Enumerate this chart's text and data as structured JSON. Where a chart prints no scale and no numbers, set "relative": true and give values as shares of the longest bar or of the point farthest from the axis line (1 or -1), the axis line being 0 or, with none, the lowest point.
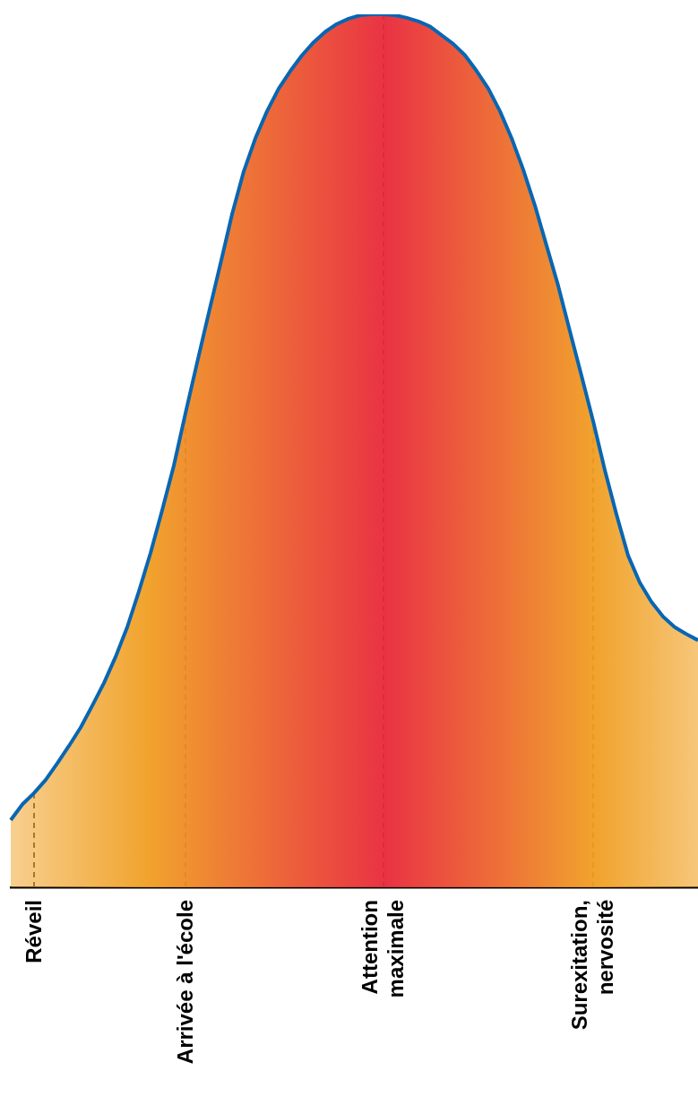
{
  "chart_data": {
    "type": "area",
    "relative": true,
    "categories": [
      null,
      null,
      "Réveil",
      null,
      null,
      null,
      null,
      null,
      null,
      null,
      null,
      null,
      null,
      null,
      null,
      "Arrivée à l'école",
      null,
      null,
      null,
      null,
      null,
      null,
      null,
      null,
      null,
      null,
      null,
      null,
      null,
      null,
      null,
      null,
      "Attention maximale",
      null,
      null,
      null,
      null,
      null,
      null,
      null,
      null,
      null,
      null,
      null,
      null,
      null,
      null,
      null,
      null,
      null,
      "Surexitation, nervosité",
      null,
      null,
      null,
      null,
      null,
      null,
      null,
      null,
      null
    ],
    "series": [
      {
        "color": "#0866b2",
        "values": [
          0.077,
          0.095,
          0.108,
          0.123,
          0.142,
          0.162,
          0.183,
          0.208,
          0.234,
          0.264,
          0.298,
          0.339,
          0.383,
          0.432,
          0.483,
          0.543,
          0.601,
          0.658,
          0.714,
          0.771,
          0.82,
          0.858,
          0.889,
          0.915,
          0.935,
          0.953,
          0.968,
          0.98,
          0.989,
          0.995,
          0.999,
          1,
          1,
          0.999,
          0.996,
          0.992,
          0.986,
          0.976,
          0.966,
          0.953,
          0.935,
          0.915,
          0.889,
          0.858,
          0.822,
          0.781,
          0.735,
          0.689,
          0.637,
          0.586,
          0.534,
          0.478,
          0.427,
          0.38,
          0.349,
          0.327,
          0.31,
          0.298,
          0.29,
          0.283
        ]
      }
    ],
    "ref_lines": [
      {
        "axis": "x",
        "value": "Réveil",
        "color": "#000000",
        "line_style": "dashed"
      },
      {
        "axis": "x",
        "value": "Arrivée à l'école",
        "color": "#000000",
        "line_style": "dashed"
      },
      {
        "axis": "x",
        "value": "Attention maximale",
        "color": "#000000",
        "line_style": "dashed"
      },
      {
        "axis": "x",
        "value": "Surexitation, nervosité",
        "color": "#000000",
        "line_style": "dashed"
      }
    ],
    "grid": false,
    "legend": false,
    "marker": "none"
  }
}
